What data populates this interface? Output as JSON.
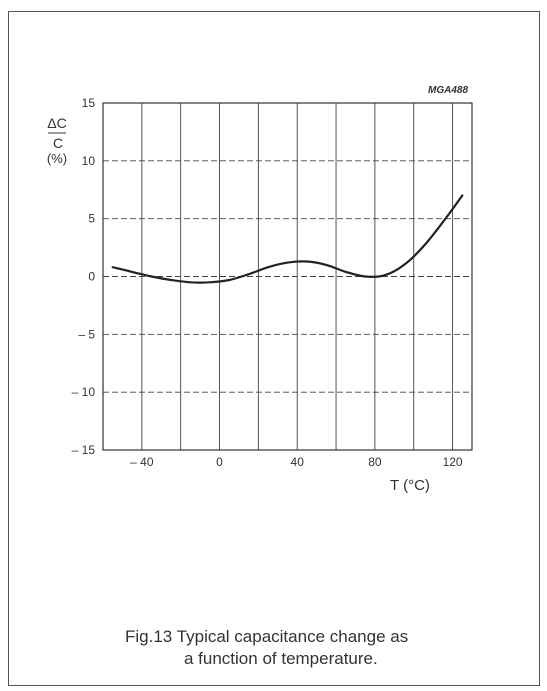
{
  "figure": {
    "code": "MGA488",
    "caption_line1": "Fig.13  Typical capacitance change as",
    "caption_line2": "a function of temperature."
  },
  "chart_data": {
    "type": "line",
    "title": "",
    "xlabel": "T (°C)",
    "ylabel_top": "ΔC",
    "ylabel_bottom": "C",
    "ylabel_unit": "(%)",
    "xlim": [
      -60,
      130
    ],
    "ylim": [
      -15,
      15
    ],
    "x_ticks": [
      -40,
      0,
      40,
      80,
      120
    ],
    "x_tick_labels": [
      "– 40",
      "0",
      "40",
      "80",
      "120"
    ],
    "y_ticks": [
      15,
      10,
      5,
      0,
      -5,
      -10,
      -15
    ],
    "y_tick_labels": [
      "15",
      "10",
      "5",
      "0",
      "– 5",
      "– 10",
      "– 15"
    ],
    "grid": true,
    "series": [
      {
        "name": "",
        "color": "#222222",
        "x": [
          -55,
          -45,
          -35,
          -25,
          -15,
          -5,
          5,
          15,
          25,
          35,
          45,
          55,
          65,
          75,
          85,
          95,
          105,
          115,
          125
        ],
        "y": [
          0.8,
          0.4,
          0.0,
          -0.3,
          -0.5,
          -0.5,
          -0.3,
          0.2,
          0.8,
          1.2,
          1.3,
          1.0,
          0.4,
          0.0,
          0.1,
          1.0,
          2.6,
          4.7,
          7.0
        ]
      }
    ]
  },
  "colors": {
    "line": "#222222",
    "axis": "#333333",
    "grid": "#444444",
    "text": "#333333"
  }
}
